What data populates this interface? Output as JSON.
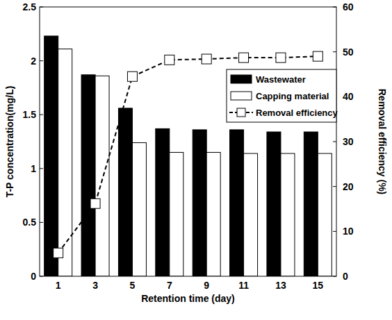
{
  "chart_data": {
    "type": "bar",
    "x_label": "Retention time (day)",
    "y_label": "T-P concentration(mg/L)",
    "y2_label": "Removal efficiency (%)",
    "categories": [
      "1",
      "3",
      "5",
      "7",
      "9",
      "11",
      "13",
      "15"
    ],
    "series": [
      {
        "name": "Wastewater",
        "type": "bar",
        "color": "#000000",
        "values": [
          2.23,
          1.87,
          1.56,
          1.37,
          1.36,
          1.36,
          1.34,
          1.34
        ]
      },
      {
        "name": "Capping material",
        "type": "bar",
        "color": "#ffffff",
        "values": [
          2.11,
          1.86,
          1.24,
          1.15,
          1.15,
          1.14,
          1.14,
          1.14
        ]
      },
      {
        "name": "Removal efficiency",
        "type": "line",
        "axis": "y2",
        "color": "#000000",
        "marker": "square",
        "line_style": "dashed",
        "values": [
          5.2,
          16.2,
          44.5,
          48.2,
          48.4,
          48.7,
          48.7,
          49.0
        ]
      }
    ],
    "ylim": [
      0,
      2.5
    ],
    "yticks": [
      0,
      0.5,
      1,
      1.5,
      2,
      2.5
    ],
    "y2lim": [
      0,
      60
    ],
    "y2ticks": [
      0,
      10,
      20,
      30,
      40,
      50,
      60
    ],
    "grid": false,
    "legend": "right"
  }
}
